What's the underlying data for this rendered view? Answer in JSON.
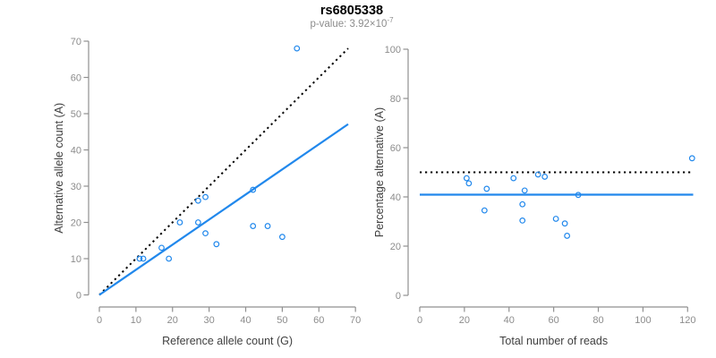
{
  "header": {
    "title": "rs6805338",
    "subtitle_base": "p-value: 3.92×10",
    "subtitle_exponent": "-7"
  },
  "colors": {
    "accent_blue": "#2188EC",
    "dotted_black": "#000000",
    "axis_line": "#909090",
    "tick_label": "#8c8c8c",
    "axis_title": "#3f3f3f",
    "title": "#000000",
    "subtitle": "#8c8c8c",
    "background": "#ffffff"
  },
  "chart_data": [
    {
      "id": "allele-counts",
      "type": "scatter",
      "xlabel": "Reference allele count (G)",
      "ylabel": "Alternative allele count (A)",
      "xlim": [
        0,
        70
      ],
      "ylim": [
        0,
        70
      ],
      "xticks": [
        0,
        10,
        20,
        30,
        40,
        50,
        60,
        70
      ],
      "yticks": [
        0,
        10,
        20,
        30,
        40,
        50,
        60,
        70
      ],
      "grid": false,
      "legend": "none",
      "points": [
        [
          11,
          10
        ],
        [
          12,
          10
        ],
        [
          17,
          13
        ],
        [
          19,
          10
        ],
        [
          22,
          20
        ],
        [
          27,
          20
        ],
        [
          27,
          26
        ],
        [
          29,
          27
        ],
        [
          29,
          17
        ],
        [
          32,
          14
        ],
        [
          42,
          19
        ],
        [
          42,
          29
        ],
        [
          46,
          19
        ],
        [
          50,
          16
        ],
        [
          54,
          68
        ]
      ],
      "lines": [
        {
          "name": "identity-line",
          "style": "dotted",
          "color": "#000000",
          "x": [
            0,
            68
          ],
          "y": [
            0,
            68
          ]
        },
        {
          "name": "fit-line",
          "style": "solid",
          "color": "#2188EC",
          "x": [
            0,
            68
          ],
          "y": [
            0,
            47.1
          ]
        }
      ]
    },
    {
      "id": "percentage-vs-reads",
      "type": "scatter",
      "xlabel": "Total number of reads",
      "ylabel": "Percentage alternative (A)",
      "xlim": [
        0,
        120
      ],
      "ylim": [
        0,
        100
      ],
      "xticks": [
        0,
        20,
        40,
        60,
        80,
        100,
        120
      ],
      "yticks": [
        0,
        20,
        40,
        60,
        80,
        100
      ],
      "grid": false,
      "legend": "none",
      "points": [
        [
          21,
          47.6
        ],
        [
          22,
          45.5
        ],
        [
          30,
          43.3
        ],
        [
          29,
          34.5
        ],
        [
          42,
          47.6
        ],
        [
          47,
          42.6
        ],
        [
          53,
          49.1
        ],
        [
          56,
          48.2
        ],
        [
          46,
          37.0
        ],
        [
          46,
          30.4
        ],
        [
          61,
          31.1
        ],
        [
          71,
          40.8
        ],
        [
          65,
          29.2
        ],
        [
          66,
          24.2
        ],
        [
          122,
          55.7
        ]
      ],
      "lines": [
        {
          "name": "expected-50pct-line",
          "style": "dotted",
          "color": "#000000",
          "x": [
            0,
            122.5
          ],
          "y": [
            50,
            50
          ]
        },
        {
          "name": "mean-percentage-line",
          "style": "solid",
          "color": "#2188EC",
          "x": [
            0,
            122.5
          ],
          "y": [
            40.9,
            40.9
          ]
        }
      ]
    }
  ]
}
